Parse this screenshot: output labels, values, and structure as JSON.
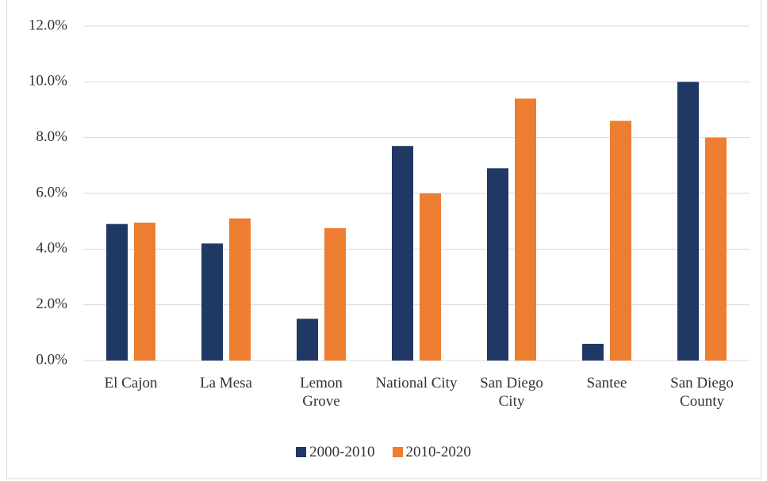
{
  "chart_data": {
    "type": "bar",
    "categories": [
      "El Cajon",
      "La Mesa",
      "Lemon Grove",
      "National City",
      "San Diego City",
      "Santee",
      "San Diego County"
    ],
    "series": [
      {
        "name": "2000-2010",
        "color": "#203864",
        "values": [
          4.9,
          4.2,
          1.5,
          7.7,
          6.9,
          0.6,
          10.0
        ]
      },
      {
        "name": "2010-2020",
        "color": "#ed7d31",
        "values": [
          4.95,
          5.1,
          4.75,
          6.0,
          9.4,
          8.6,
          8.0
        ]
      }
    ],
    "ylim": [
      0,
      12
    ],
    "yticks": [
      {
        "value": 0,
        "label": "0.0%"
      },
      {
        "value": 2,
        "label": "2.0%"
      },
      {
        "value": 4,
        "label": "4.0%"
      },
      {
        "value": 6,
        "label": "6.0%"
      },
      {
        "value": 8,
        "label": "8.0%"
      },
      {
        "value": 10,
        "label": "10.0%"
      },
      {
        "value": 12,
        "label": "12.0%"
      }
    ],
    "grid": true,
    "legend": "bottom"
  }
}
